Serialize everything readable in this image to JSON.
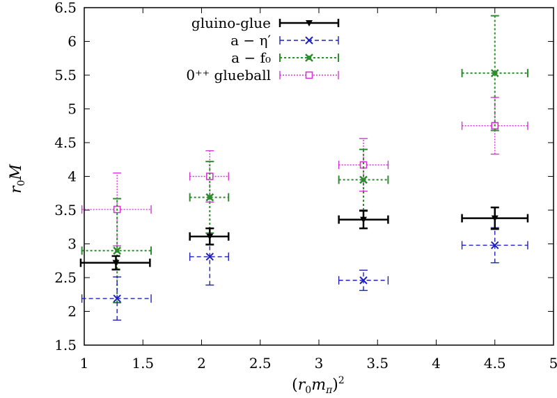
{
  "chart_data": {
    "type": "scatter",
    "title": "",
    "xlabel": "(r₀m_π)²",
    "ylabel": "r₀M",
    "xlim": [
      1,
      5
    ],
    "ylim": [
      1.5,
      6.5
    ],
    "x_ticks": [
      "1",
      "1.5",
      "2",
      "2.5",
      "3",
      "3.5",
      "4",
      "4.5",
      "5"
    ],
    "y_ticks": [
      "1.5",
      "2",
      "2.5",
      "3",
      "3.5",
      "4",
      "4.5",
      "5",
      "5.5",
      "6",
      "6.5"
    ],
    "legend_position": "top-center",
    "series": [
      {
        "name": "gluino-glue",
        "legend_text": "gluino-glue",
        "color": "#000000",
        "dash": "solid",
        "marker": "triangle-down",
        "points": [
          {
            "x": 1.27,
            "xerr": [
              0.3,
              0.29
            ],
            "y": 2.72,
            "yerr": [
              0.1,
              0.1
            ]
          },
          {
            "x": 2.07,
            "xerr": [
              0.17,
              0.16
            ],
            "y": 3.11,
            "yerr": [
              0.12,
              0.12
            ]
          },
          {
            "x": 3.38,
            "xerr": [
              0.21,
              0.21
            ],
            "y": 3.36,
            "yerr": [
              0.13,
              0.13
            ]
          },
          {
            "x": 4.5,
            "xerr": [
              0.28,
              0.28
            ],
            "y": 3.38,
            "yerr": [
              0.16,
              0.16
            ]
          }
        ]
      },
      {
        "name": "a-eta-prime",
        "legend_text": "a − η′",
        "color": "#1f1fbf",
        "dash": "dashed",
        "marker": "x",
        "points": [
          {
            "x": 1.28,
            "xerr": [
              0.3,
              0.29
            ],
            "y": 2.19,
            "yerr": [
              0.32,
              0.32
            ]
          },
          {
            "x": 2.07,
            "xerr": [
              0.17,
              0.16
            ],
            "y": 2.81,
            "yerr": [
              0.42,
              0.42
            ]
          },
          {
            "x": 3.38,
            "xerr": [
              0.21,
              0.21
            ],
            "y": 2.46,
            "yerr": [
              0.15,
              0.15
            ]
          },
          {
            "x": 4.5,
            "xerr": [
              0.28,
              0.28
            ],
            "y": 2.98,
            "yerr": [
              0.26,
              0.26
            ]
          }
        ]
      },
      {
        "name": "a-f0",
        "legend_text": "a − f₀",
        "color": "#2e8b2e",
        "dash": "dotted",
        "marker": "filled-square",
        "points": [
          {
            "x": 1.28,
            "xerr": [
              0.3,
              0.29
            ],
            "y": 2.9,
            "yerr": [
              0.77,
              0.77
            ]
          },
          {
            "x": 2.07,
            "xerr": [
              0.17,
              0.16
            ],
            "y": 3.69,
            "yerr": [
              0.53,
              0.53
            ]
          },
          {
            "x": 3.38,
            "xerr": [
              0.21,
              0.21
            ],
            "y": 3.95,
            "yerr": [
              0.45,
              0.45
            ]
          },
          {
            "x": 4.5,
            "xerr": [
              0.28,
              0.28
            ],
            "y": 5.53,
            "yerr": [
              0.85,
              0.85
            ]
          }
        ]
      },
      {
        "name": "0++ glueball",
        "legend_text": "0⁺⁺ glueball",
        "color": "#d633d6",
        "dash": "fine-dotted",
        "marker": "open-square",
        "points": [
          {
            "x": 1.28,
            "xerr": [
              0.3,
              0.29
            ],
            "y": 3.51,
            "yerr": [
              0.54,
              0.54
            ]
          },
          {
            "x": 2.07,
            "xerr": [
              0.17,
              0.16
            ],
            "y": 4.0,
            "yerr": [
              0.38,
              0.38
            ]
          },
          {
            "x": 3.38,
            "xerr": [
              0.21,
              0.21
            ],
            "y": 4.17,
            "yerr": [
              0.39,
              0.39
            ]
          },
          {
            "x": 4.5,
            "xerr": [
              0.28,
              0.28
            ],
            "y": 4.75,
            "yerr": [
              0.42,
              0.42
            ]
          }
        ]
      }
    ]
  }
}
